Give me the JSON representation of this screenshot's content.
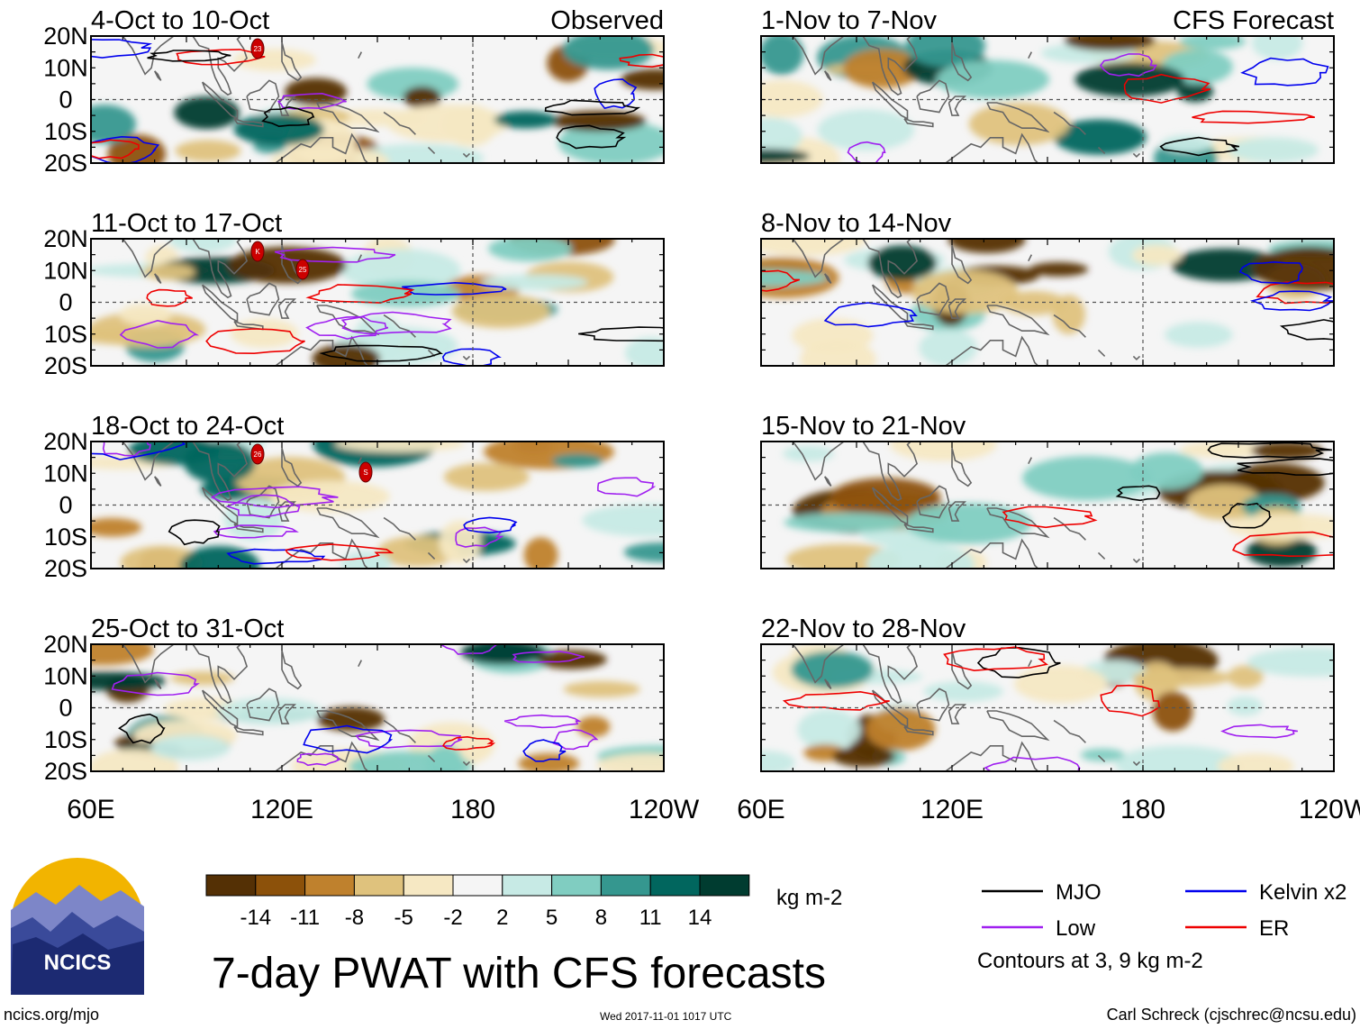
{
  "chart_data": {
    "type": "heatmap",
    "title": "7-day PWAT with CFS forecasts",
    "units": "kg m-2",
    "columns": [
      {
        "tag": "Observed",
        "periods": [
          "4-Oct to 10-Oct",
          "11-Oct to 17-Oct",
          "18-Oct to 24-Oct",
          "25-Oct to 31-Oct"
        ]
      },
      {
        "tag": "CFS Forecast",
        "periods": [
          "1-Nov to 7-Nov",
          "8-Nov to 14-Nov",
          "15-Nov to 21-Nov",
          "22-Nov to 28-Nov"
        ]
      }
    ],
    "lat_ticks": [
      "20N",
      "10N",
      "0",
      "10S",
      "20S"
    ],
    "lat_range": [
      -20,
      20
    ],
    "lon_ticks": [
      "60E",
      "120E",
      "180",
      "120W"
    ],
    "lon_range": [
      60,
      240
    ],
    "colorbar": {
      "ticks": [
        "-14",
        "-11",
        "-8",
        "-5",
        "-2",
        "2",
        "5",
        "8",
        "11",
        "14"
      ],
      "colors": [
        "#543005",
        "#8c510a",
        "#bf812d",
        "#dfc27d",
        "#f6e8c3",
        "#f5f5f5",
        "#c7eae5",
        "#80cdc1",
        "#35978f",
        "#01665e",
        "#003c30"
      ]
    },
    "legend": [
      {
        "label": "MJO",
        "color": "#000000"
      },
      {
        "label": "Kelvin x2",
        "color": "#0000ee"
      },
      {
        "label": "Low",
        "color": "#a020f0"
      },
      {
        "label": "ER",
        "color": "#ee0000"
      }
    ],
    "contour_note": "Contours at 3, 9 kg m-2",
    "storm_markers": [
      {
        "panel": 0,
        "label": "23"
      },
      {
        "panel": 1,
        "label": "K"
      },
      {
        "panel": 1,
        "label": "25"
      },
      {
        "panel": 2,
        "label": "26"
      },
      {
        "panel": 2,
        "label": "S"
      }
    ]
  },
  "logo": {
    "text": "NCICS"
  },
  "footer": {
    "website": "ncics.org/mjo",
    "timestamp": "Wed 2017-11-01 1017 UTC",
    "credit": "Carl Schreck (cjschrec@ncsu.edu)"
  }
}
